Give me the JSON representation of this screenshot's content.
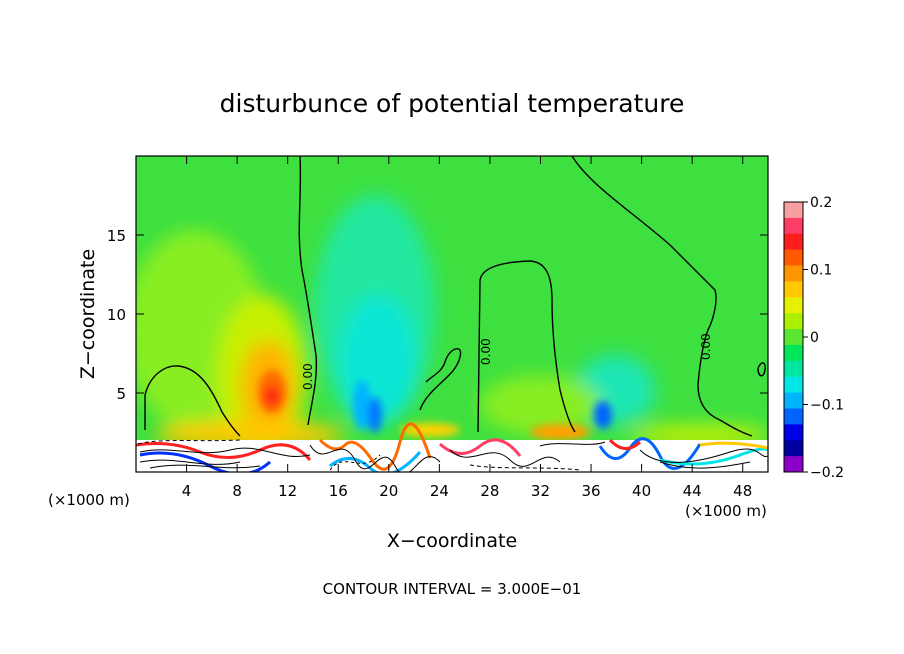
{
  "chart_data": {
    "type": "heatmap",
    "title": "disturbunce of potential temperature",
    "xlabel": "X−coordinate",
    "ylabel": "Z−coordinate",
    "x_unit_label": "(×1000 m)",
    "xlim": [
      0,
      50
    ],
    "ylim": [
      0,
      20
    ],
    "x_ticks": [
      "4",
      "8",
      "12",
      "16",
      "20",
      "24",
      "28",
      "32",
      "36",
      "40",
      "44",
      "48"
    ],
    "y_ticks": [
      "5",
      "10",
      "15"
    ],
    "colorbar": {
      "range": [
        -0.2,
        0.2
      ],
      "tick_labels": [
        "0.2",
        "0.1",
        "0",
        "−0.1",
        "−0.2"
      ],
      "colors": [
        "#f8a0a0",
        "#ff3c64",
        "#ff1e1e",
        "#ff5a00",
        "#ff9600",
        "#ffc800",
        "#e6f000",
        "#aaf000",
        "#5ae632",
        "#00e65a",
        "#00e6a0",
        "#00e6e6",
        "#00b4ff",
        "#0064ff",
        "#0000e6",
        "#0000a0",
        "#8c00c8"
      ]
    },
    "contour_label": "0.00",
    "footer": "CONTOUR INTERVAL = 3.000E−01"
  }
}
